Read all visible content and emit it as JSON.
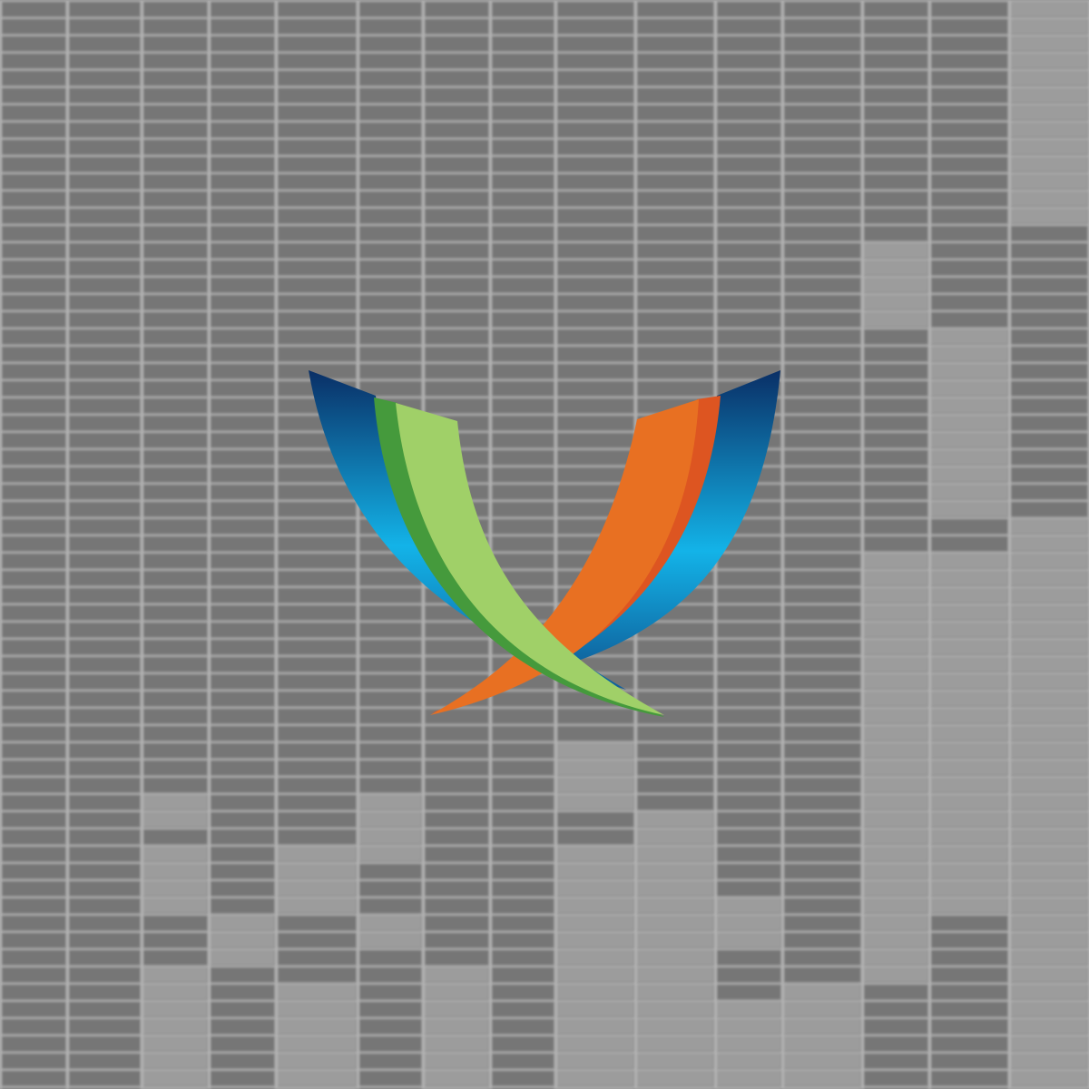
{
  "background": {
    "description_colors": {
      "dark_cell": "#767676",
      "light_cell": "#9c9c9c",
      "gridline": "#b4b4b4"
    }
  },
  "logo": {
    "icon": "x-ribbon-logo-icon",
    "colors": {
      "blue_dark": "#0a2f66",
      "blue_light": "#13b3e8",
      "green_dark": "#459a3c",
      "green_light": "#a0d068",
      "orange": "#e87022",
      "orange_dark": "#dd5521"
    }
  }
}
